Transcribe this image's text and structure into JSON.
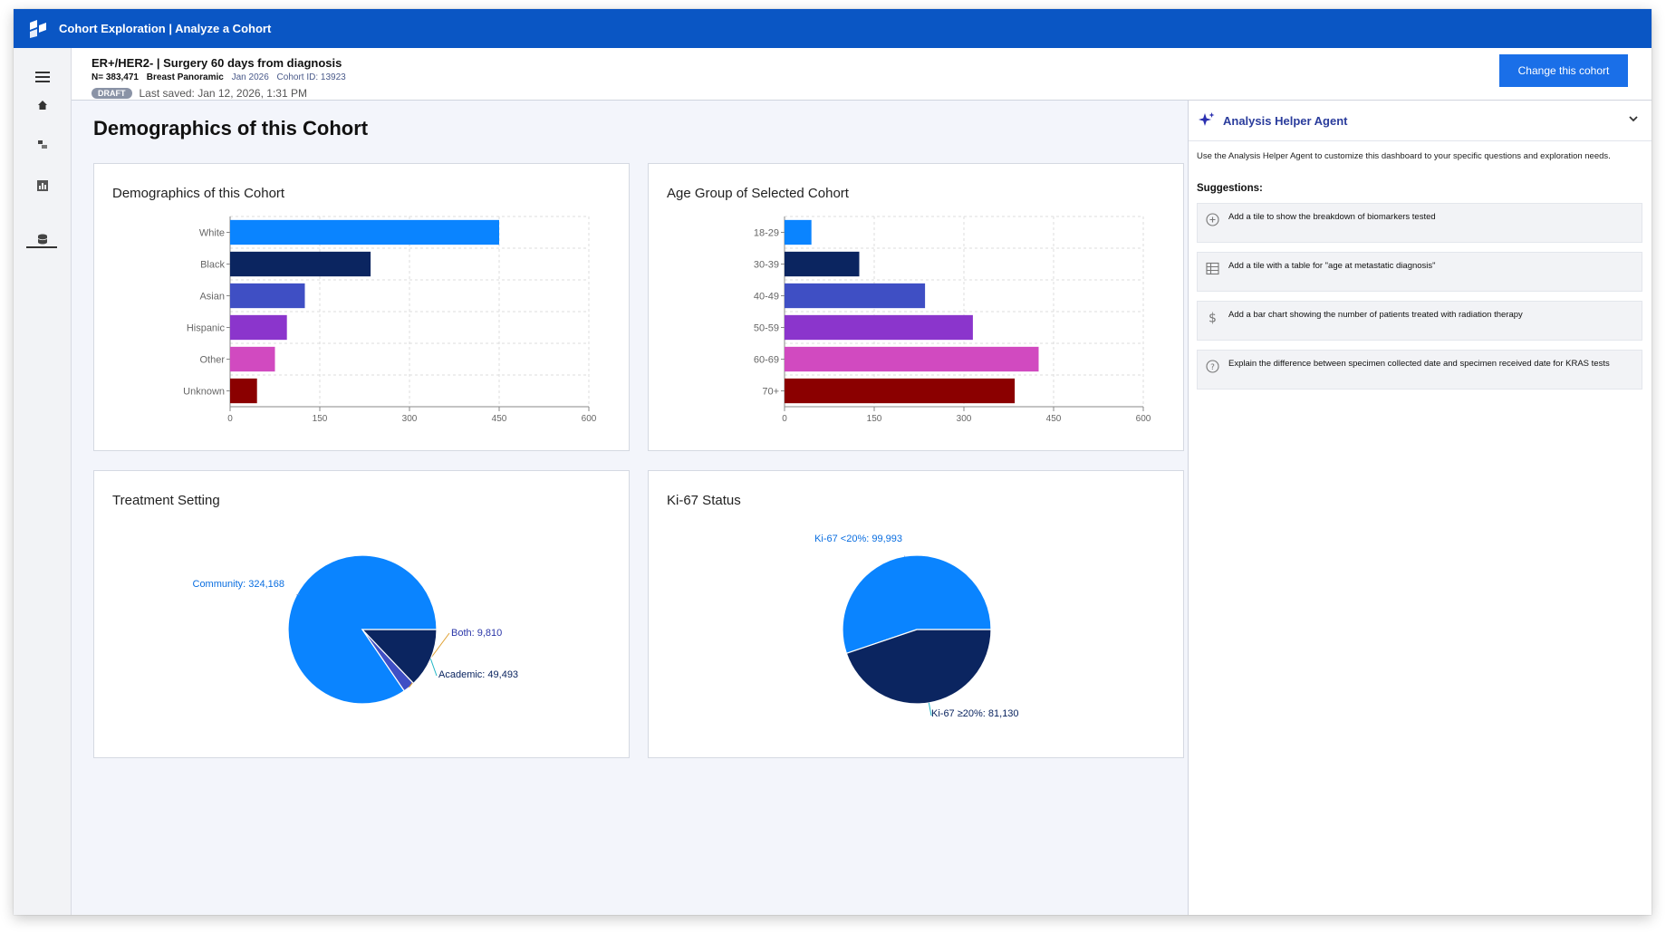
{
  "app": {
    "title": "Cohort Exploration | Analyze a Cohort"
  },
  "rail": {
    "icons": [
      "menu-icon",
      "home-icon",
      "cohort-icon",
      "chart-icon",
      "database-icon"
    ]
  },
  "cohort": {
    "name": "ER+/HER2- | Surgery 60 days from diagnosis",
    "n_label": "N= 383,471",
    "dataset": "Breast Panoramic",
    "date": "Jan 2026",
    "cohort_id": "Cohort ID: 13923",
    "status": "DRAFT",
    "last_saved": "Last saved: Jan 12, 2026, 1:31 PM",
    "change_button": "Change this cohort"
  },
  "page": {
    "title": "Demographics of this Cohort"
  },
  "colors": {
    "brand": "#0a56c4",
    "button": "#1a6fe8",
    "bars": [
      "#0a84ff",
      "#0b2560",
      "#3f4fc4",
      "#8b35cc",
      "#d14ac0",
      "#8b0000"
    ],
    "pie_blue": "#0a84ff",
    "pie_navy": "#0b2560",
    "pie_indigo": "#3f4fc4"
  },
  "chart_data": [
    {
      "type": "bar",
      "orientation": "horizontal",
      "title": "Demographics of this Cohort",
      "categories": [
        "White",
        "Black",
        "Asian",
        "Hispanic",
        "Other",
        "Unknown"
      ],
      "values": [
        450,
        235,
        125,
        95,
        75,
        45
      ],
      "xlim": [
        0,
        600
      ],
      "xticks": [
        0,
        150,
        300,
        450,
        600
      ],
      "grid": true
    },
    {
      "type": "bar",
      "orientation": "horizontal",
      "title": "Age Group of Selected Cohort",
      "categories": [
        "18-29",
        "30-39",
        "40-49",
        "50-59",
        "60-69",
        "70+"
      ],
      "values": [
        45,
        125,
        235,
        315,
        425,
        385
      ],
      "xlim": [
        0,
        600
      ],
      "xticks": [
        0,
        150,
        300,
        450,
        600
      ],
      "grid": true
    },
    {
      "type": "pie",
      "title": "Treatment Setting",
      "labels": [
        "Community",
        "Both",
        "Academic"
      ],
      "values": [
        324168,
        9810,
        49493
      ],
      "data_labels": [
        "Community: 324,168",
        "Both: 9,810",
        "Academic: 49,493"
      ]
    },
    {
      "type": "pie",
      "title": "Ki-67 Status",
      "labels": [
        "Ki-67 <20%",
        "Ki-67 ≥20%"
      ],
      "values": [
        99993,
        81130
      ],
      "data_labels": [
        "Ki-67 <20%: 99,993",
        "Ki-67 ≥20%: 81,130"
      ]
    }
  ],
  "agent": {
    "title": "Analysis Helper Agent",
    "description": "Use the Analysis Helper Agent to customize this dashboard to your specific questions and exploration needs.",
    "suggestions_label": "Suggestions:",
    "suggestions": [
      {
        "icon": "plus-circle-icon",
        "text": "Add a tile to show the breakdown of biomarkers tested"
      },
      {
        "icon": "table-icon",
        "text": "Add a tile with a table for \"age at metastatic diagnosis\""
      },
      {
        "icon": "dollar-icon",
        "text": "Add a bar chart showing the number of patients treated with radiation therapy"
      },
      {
        "icon": "question-circle-icon",
        "text": "Explain the difference between specimen collected date and specimen received date for KRAS tests"
      }
    ]
  }
}
